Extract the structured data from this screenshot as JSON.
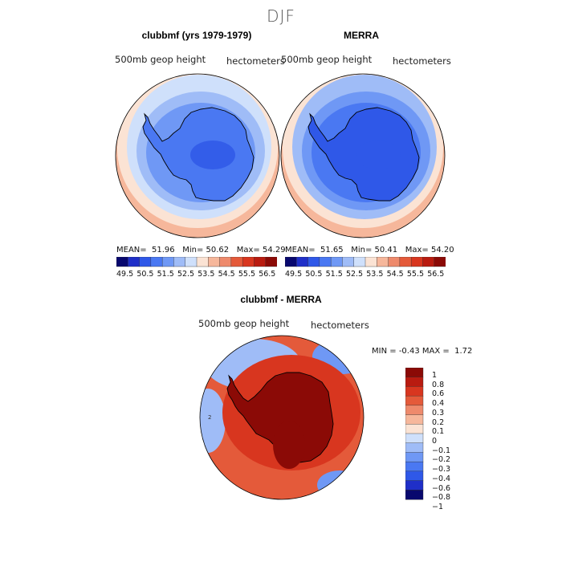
{
  "season": "DJF",
  "colors": {
    "abs_scale": [
      "#08086e",
      "#1f2fc8",
      "#2f58e8",
      "#4a78f2",
      "#6f98f5",
      "#9fbcf7",
      "#cfe0fb",
      "#fbe3d4",
      "#f6b79b",
      "#ee8a6c",
      "#e45a3a",
      "#d8361f",
      "#b91b10",
      "#8b0a06"
    ],
    "diff_scale": [
      "#08086e",
      "#1f2fc8",
      "#2f58e8",
      "#4a78f2",
      "#6f98f5",
      "#9fbcf7",
      "#cfe0fb",
      "#fbe3d4",
      "#f6b79b",
      "#ee8a6c",
      "#e45a3a",
      "#d8361f",
      "#b91b10",
      "#8b0a06"
    ],
    "coast": "#000000"
  },
  "chart_data": [
    {
      "type": "heatmap",
      "projection": "south-polar-stereographic",
      "title": "clubbmf (yrs 1979-1979)",
      "subtitle_left": "500mb geop height",
      "subtitle_right": "hectometers",
      "stats": {
        "mean_label": "MEAN=",
        "mean": "51.96",
        "min_label": "Min=",
        "min": "50.62",
        "max_label": "Max=",
        "max": "54.29"
      },
      "levels": [
        49.5,
        50.5,
        51.5,
        52.5,
        53.5,
        54.5,
        55.5,
        56.5
      ],
      "colorbar_ticks": [
        "49.5",
        "50.5",
        "51.5",
        "52.5",
        "53.5",
        "54.5",
        "55.5",
        "56.5"
      ],
      "field_levels": {
        "outer": 53.8,
        "ring2": 53.2,
        "ring3": 52.6,
        "ring4": 52.0,
        "inner": 51.5,
        "continent": 51.0,
        "interior": 50.9
      }
    },
    {
      "type": "heatmap",
      "projection": "south-polar-stereographic",
      "title": "MERRA",
      "subtitle_left": "500mb geop height",
      "subtitle_right": "hectometers",
      "stats": {
        "mean_label": "MEAN=",
        "mean": "51.65",
        "min_label": "Min=",
        "min": "50.41",
        "max_label": "Max=",
        "max": "54.20"
      },
      "levels": [
        49.5,
        50.5,
        51.5,
        52.5,
        53.5,
        54.5,
        55.5,
        56.5
      ],
      "colorbar_ticks": [
        "49.5",
        "50.5",
        "51.5",
        "52.5",
        "53.5",
        "54.5",
        "55.5",
        "56.5"
      ],
      "field_levels": {
        "outer": 53.7,
        "ring2": 53.0,
        "ring3": 52.4,
        "ring4": 51.8,
        "inner": 51.2,
        "continent": 50.7,
        "interior": 50.6
      }
    },
    {
      "type": "heatmap",
      "projection": "south-polar-stereographic",
      "title": "clubbmf - MERRA",
      "subtitle_left": "500mb geop height",
      "subtitle_right": "hectometers",
      "stats": {
        "min_label": "MIN =",
        "min": "-0.43",
        "max_label": "MAX =",
        "max": "1.72"
      },
      "colorbar_ticks": [
        "1",
        "0.8",
        "0.6",
        "0.4",
        "0.3",
        "0.2",
        "0.1",
        "0",
        "−0.1",
        "−0.2",
        "−0.3",
        "−0.4",
        "−0.6",
        "−0.8",
        "−1"
      ],
      "field_levels": {
        "ocean": 0.5,
        "continent": 0.9,
        "interior": 1.0,
        "pacific_low": -0.15,
        "atlantic_low": -0.2
      }
    }
  ]
}
